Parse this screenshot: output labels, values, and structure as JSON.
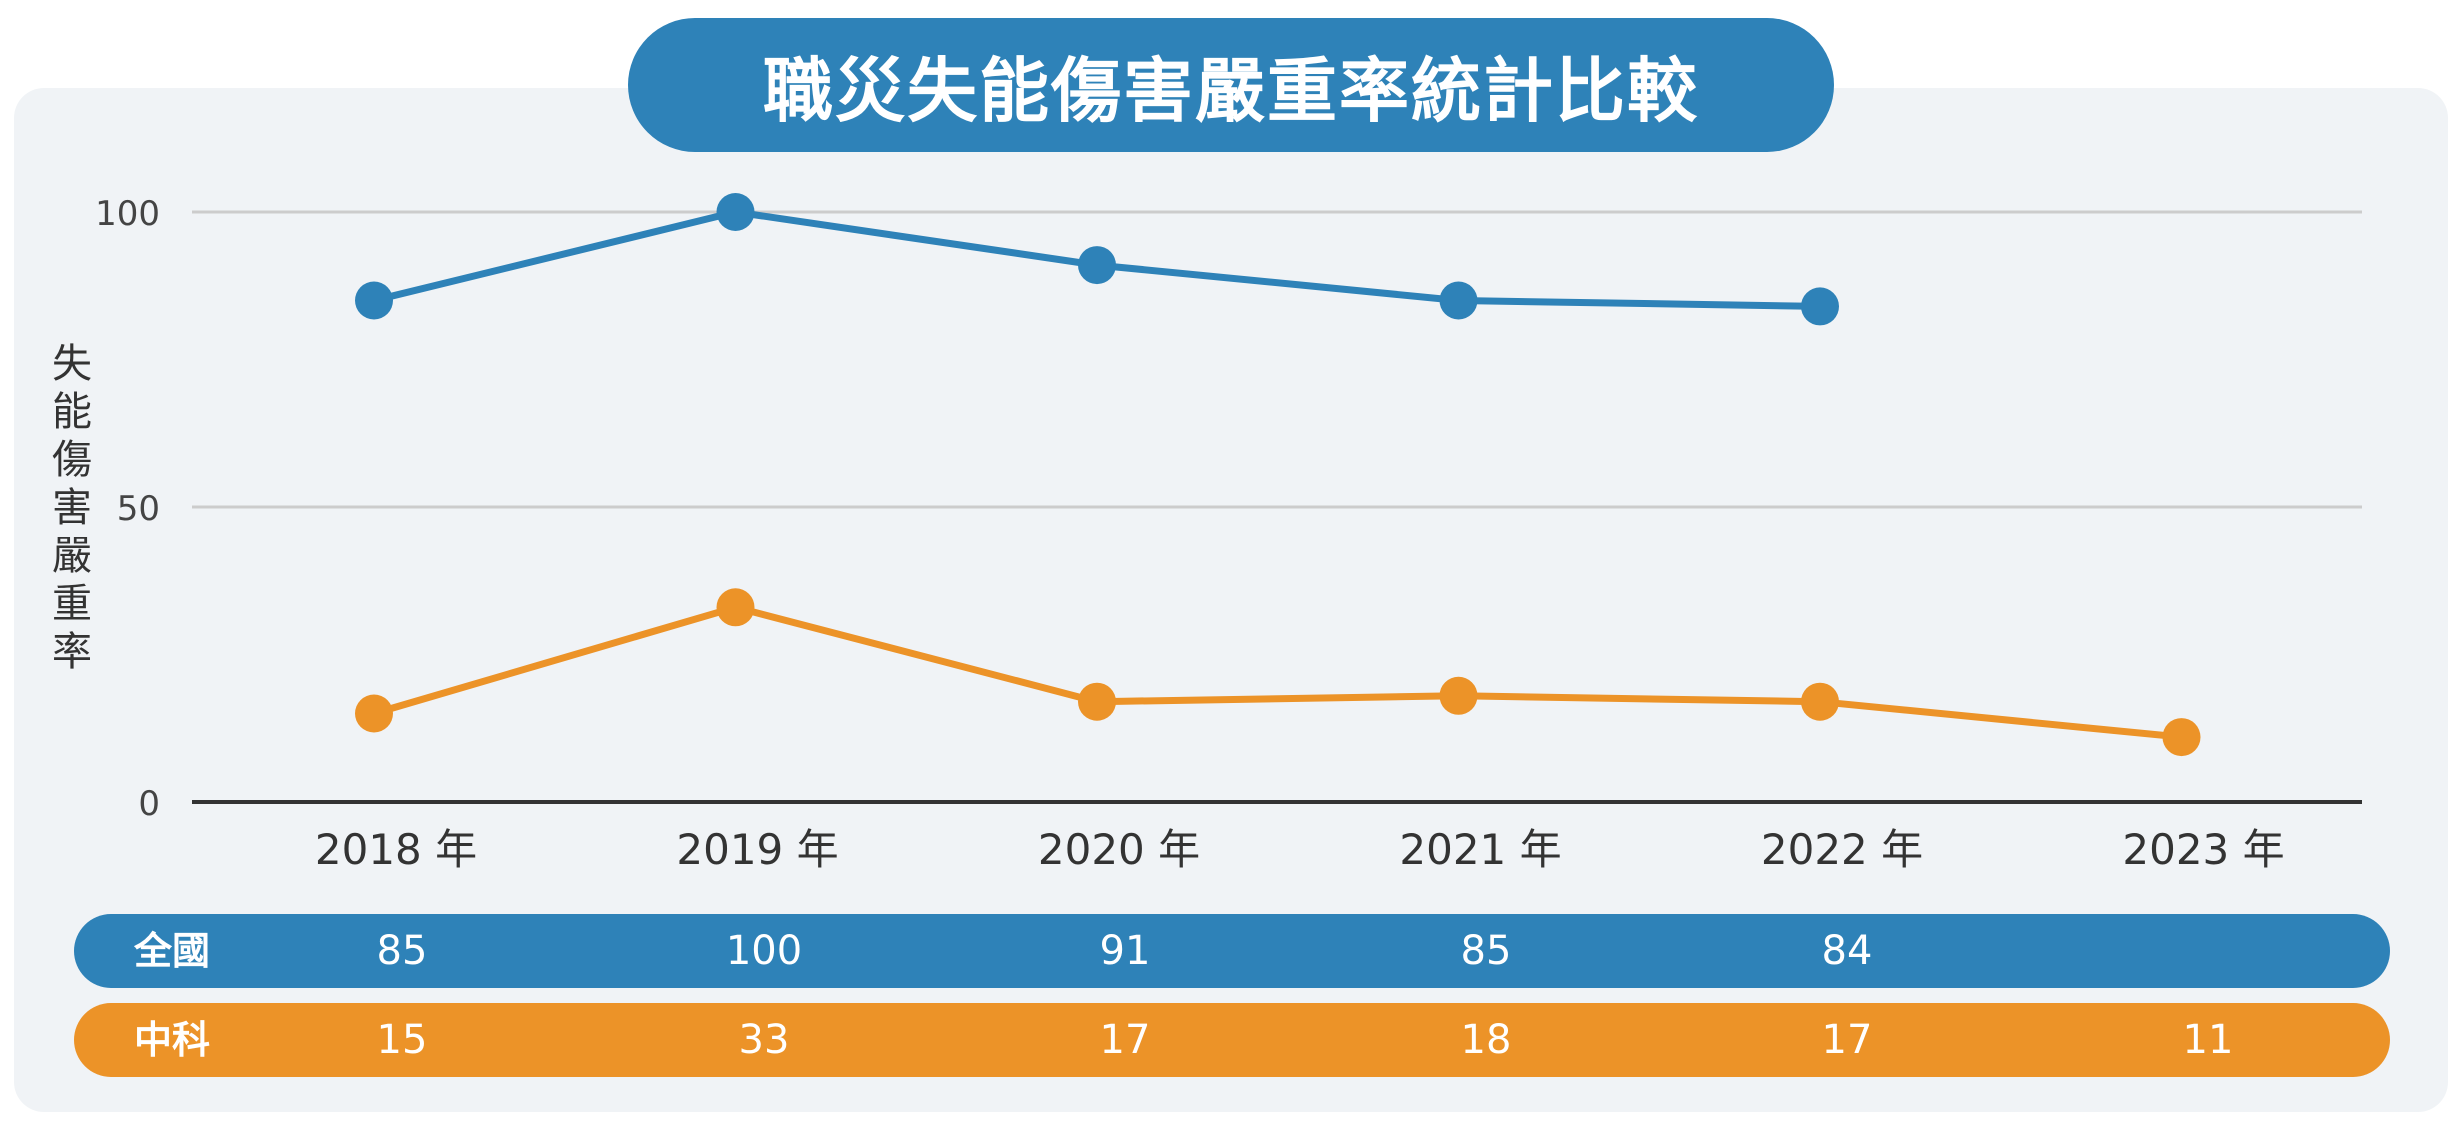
{
  "title": "職災失能傷害嚴重率統計比較",
  "colors": {
    "national": "#2e82b8",
    "central": "#ec9328",
    "grid": "#cccccc",
    "axis": "#333333",
    "text": "#333333"
  },
  "chart_data": {
    "type": "line",
    "categories": [
      "2018 年",
      "2019 年",
      "2020 年",
      "2021 年",
      "2022 年",
      "2023 年"
    ],
    "ylabel": "失能傷害嚴重率",
    "ylim": [
      0,
      100
    ],
    "yticks": [
      "0",
      "50",
      "100"
    ],
    "grid": true,
    "series": [
      {
        "name": "全國",
        "values": [
          85,
          100,
          91,
          85,
          84,
          null
        ]
      },
      {
        "name": "中科",
        "values": [
          15,
          33,
          17,
          18,
          17,
          11
        ]
      }
    ]
  },
  "table": {
    "rows": [
      {
        "label": "全國",
        "values": [
          "85",
          "100",
          "91",
          "85",
          "84",
          ""
        ]
      },
      {
        "label": "中科",
        "values": [
          "15",
          "33",
          "17",
          "18",
          "17",
          "11"
        ]
      }
    ]
  }
}
